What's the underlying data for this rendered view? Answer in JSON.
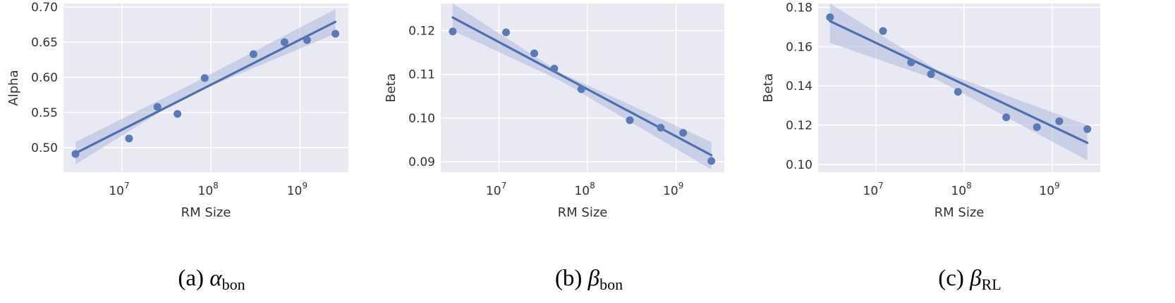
{
  "chart_data": [
    {
      "type": "scatter",
      "fit": "linear regression with confidence band",
      "xscale": "log",
      "xlabel": "RM Size",
      "ylabel": "Alpha",
      "xlim": [
        2200000,
        3500000000
      ],
      "ylim": [
        0.465,
        0.705
      ],
      "xticks": [
        {
          "value": 10000000,
          "base": "10",
          "exp": "7"
        },
        {
          "value": 100000000,
          "base": "10",
          "exp": "8"
        },
        {
          "value": 1000000000,
          "base": "10",
          "exp": "9"
        }
      ],
      "yticks": [
        "0.50",
        "0.55",
        "0.60",
        "0.65",
        "0.70"
      ],
      "points": [
        {
          "x": 3000000,
          "y": 0.491
        },
        {
          "x": 12000000,
          "y": 0.513
        },
        {
          "x": 25000000,
          "y": 0.558
        },
        {
          "x": 42000000,
          "y": 0.548
        },
        {
          "x": 85000000,
          "y": 0.599
        },
        {
          "x": 300000000,
          "y": 0.633
        },
        {
          "x": 670000000,
          "y": 0.65
        },
        {
          "x": 1200000000,
          "y": 0.653
        },
        {
          "x": 2500000000,
          "y": 0.662
        }
      ],
      "fit_line": {
        "x0": 3000000,
        "y0": 0.492,
        "x1": 2500000000,
        "y1": 0.679
      },
      "band": [
        {
          "x": 3000000,
          "lo": 0.476,
          "hi": 0.508
        },
        {
          "x": 50000000,
          "lo": 0.572,
          "hi": 0.585
        },
        {
          "x": 2500000000,
          "lo": 0.662,
          "hi": 0.697
        }
      ],
      "caption": {
        "prefix": "(a)",
        "symbol": "α",
        "sub": "bon"
      }
    },
    {
      "type": "scatter",
      "fit": "linear regression with confidence band",
      "xscale": "log",
      "xlabel": "RM Size",
      "ylabel": "Beta",
      "xlim": [
        2200000,
        3500000000
      ],
      "ylim": [
        0.0876,
        0.1262
      ],
      "xticks": [
        {
          "value": 10000000,
          "base": "10",
          "exp": "7"
        },
        {
          "value": 100000000,
          "base": "10",
          "exp": "8"
        },
        {
          "value": 1000000000,
          "base": "10",
          "exp": "9"
        }
      ],
      "yticks": [
        "0.09",
        "0.10",
        "0.11",
        "0.12"
      ],
      "points": [
        {
          "x": 3000000,
          "y": 0.1198
        },
        {
          "x": 12000000,
          "y": 0.1196
        },
        {
          "x": 25000000,
          "y": 0.1148
        },
        {
          "x": 42000000,
          "y": 0.1113
        },
        {
          "x": 85000000,
          "y": 0.1066
        },
        {
          "x": 300000000,
          "y": 0.0995
        },
        {
          "x": 670000000,
          "y": 0.0978
        },
        {
          "x": 1200000000,
          "y": 0.0966
        },
        {
          "x": 2500000000,
          "y": 0.0902
        }
      ],
      "fit_line": {
        "x0": 3000000,
        "y0": 0.123,
        "x1": 2500000000,
        "y1": 0.0915
      },
      "band": [
        {
          "x": 3000000,
          "lo": 0.12,
          "hi": 0.1262
        },
        {
          "x": 50000000,
          "lo": 0.1085,
          "hi": 0.1103
        },
        {
          "x": 2500000000,
          "lo": 0.0882,
          "hi": 0.0945
        }
      ],
      "caption": {
        "prefix": "(b)",
        "symbol": "β",
        "sub": "bon"
      }
    },
    {
      "type": "scatter",
      "fit": "linear regression with confidence band",
      "xscale": "log",
      "xlabel": "RM Size",
      "ylabel": "Beta",
      "xlim": [
        2200000,
        3500000000
      ],
      "ylim": [
        0.096,
        0.182
      ],
      "xticks": [
        {
          "value": 10000000,
          "base": "10",
          "exp": "7"
        },
        {
          "value": 100000000,
          "base": "10",
          "exp": "8"
        },
        {
          "value": 1000000000,
          "base": "10",
          "exp": "9"
        }
      ],
      "yticks": [
        "0.10",
        "0.12",
        "0.14",
        "0.16",
        "0.18"
      ],
      "points": [
        {
          "x": 3000000,
          "y": 0.175
        },
        {
          "x": 12000000,
          "y": 0.168
        },
        {
          "x": 25000000,
          "y": 0.152
        },
        {
          "x": 42000000,
          "y": 0.146
        },
        {
          "x": 85000000,
          "y": 0.137
        },
        {
          "x": 300000000,
          "y": 0.124
        },
        {
          "x": 670000000,
          "y": 0.119
        },
        {
          "x": 1200000000,
          "y": 0.122
        },
        {
          "x": 2500000000,
          "y": 0.118
        }
      ],
      "fit_line": {
        "x0": 3000000,
        "y0": 0.173,
        "x1": 2500000000,
        "y1": 0.111
      },
      "band": [
        {
          "x": 3000000,
          "lo": 0.162,
          "hi": 0.182
        },
        {
          "x": 50000000,
          "lo": 0.143,
          "hi": 0.148
        },
        {
          "x": 2500000000,
          "lo": 0.102,
          "hi": 0.12
        }
      ],
      "caption": {
        "prefix": "(c)",
        "symbol": "β",
        "sub": "RL"
      }
    }
  ],
  "colors": {
    "axes_bg": "#e8e9f2",
    "grid": "#ffffff",
    "points": "#5b78b7",
    "line": "#4c6fb0",
    "band": "#aeb9dc",
    "text": "#333333"
  }
}
